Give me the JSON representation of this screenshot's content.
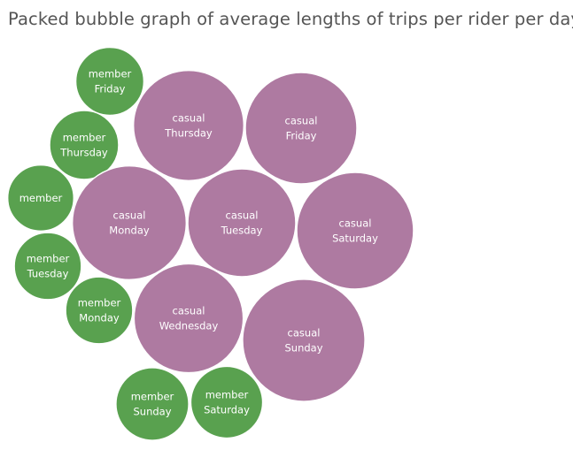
{
  "chart_data": {
    "type": "packed-bubble",
    "title": "Packed bubble graph of average lengths of trips per rider per day",
    "colors": {
      "casual": "#ae7aa1",
      "member": "#59a14f"
    },
    "bubbles": [
      {
        "rider": "member",
        "day": "Friday",
        "value": 0.35
      },
      {
        "rider": "member",
        "day": "Thursday",
        "value": 0.36
      },
      {
        "rider": "member",
        "day": "",
        "value": 0.33
      },
      {
        "rider": "member",
        "day": "Tuesday",
        "value": 0.34
      },
      {
        "rider": "member",
        "day": "Monday",
        "value": 0.34
      },
      {
        "rider": "member",
        "day": "Sunday",
        "value": 0.4
      },
      {
        "rider": "member",
        "day": "Saturday",
        "value": 0.39
      },
      {
        "rider": "casual",
        "day": "Thursday",
        "value": 0.92
      },
      {
        "rider": "casual",
        "day": "Friday",
        "value": 0.94
      },
      {
        "rider": "casual",
        "day": "Monday",
        "value": 0.98
      },
      {
        "rider": "casual",
        "day": "Tuesday",
        "value": 0.88
      },
      {
        "rider": "casual",
        "day": "Saturday",
        "value": 1.03
      },
      {
        "rider": "casual",
        "day": "Wednesday",
        "value": 0.9
      },
      {
        "rider": "casual",
        "day": "Sunday",
        "value": 1.13
      }
    ]
  }
}
